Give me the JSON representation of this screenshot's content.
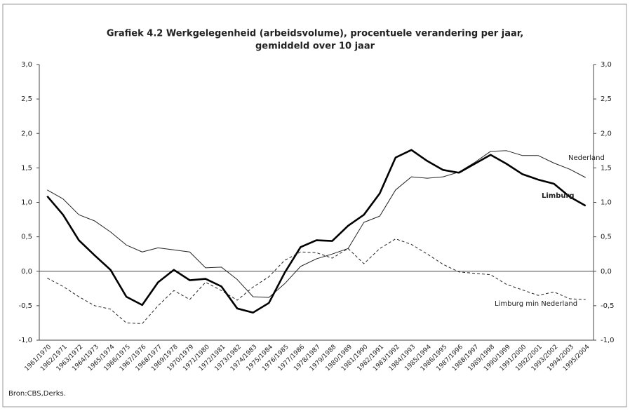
{
  "chart_data": {
    "type": "line",
    "title": [
      "Grafiek 4.2 Werkgelegenheid (arbeidsvolume), procentuele verandering per jaar,",
      "gemiddeld over 10 jaar"
    ],
    "source": "Bron:CBS,Derks.",
    "categories": [
      "1961/1970",
      "1962/1971",
      "1963/1972",
      "1964/1973",
      "1965/1974",
      "1966/1975",
      "1967/1976",
      "1968/1977",
      "1969/1978",
      "1970/1979",
      "1971/1980",
      "1972/1981",
      "1973/1982",
      "1974/1983",
      "1975/1984",
      "1976/1985",
      "1977/1986",
      "1978/1987",
      "1979/1988",
      "1980/1989",
      "1981/1990",
      "1982/1991",
      "1983/1992",
      "1984/1993",
      "1985/1994",
      "1986/1995",
      "1987/1996",
      "1988/1997",
      "1989/1998",
      "1990/1999",
      "1991/2000",
      "1992/2001",
      "1993/2002",
      "1994/2003",
      "1995/2004"
    ],
    "series": [
      {
        "name": "Nederland",
        "color": "#222222",
        "values": [
          1.18,
          1.05,
          0.82,
          0.73,
          0.57,
          0.38,
          0.28,
          0.34,
          0.31,
          0.28,
          0.05,
          0.06,
          -0.12,
          -0.37,
          -0.38,
          -0.18,
          0.07,
          0.18,
          0.25,
          0.33,
          0.71,
          0.8,
          1.18,
          1.37,
          1.35,
          1.37,
          1.44,
          1.58,
          1.74,
          1.75,
          1.68,
          1.68,
          1.57,
          1.48,
          1.36
        ]
      },
      {
        "name": "Limburg",
        "color": "#000000",
        "values": [
          1.09,
          0.82,
          0.45,
          0.23,
          0.02,
          -0.37,
          -0.49,
          -0.16,
          0.02,
          -0.13,
          -0.11,
          -0.22,
          -0.54,
          -0.6,
          -0.46,
          -0.02,
          0.35,
          0.45,
          0.44,
          0.66,
          0.82,
          1.13,
          1.65,
          1.76,
          1.6,
          1.47,
          1.43,
          1.56,
          1.69,
          1.56,
          1.41,
          1.33,
          1.27,
          1.08,
          0.95
        ]
      },
      {
        "name": "Limburg min Nederland",
        "color": "#222222",
        "values": [
          -0.1,
          -0.22,
          -0.37,
          -0.5,
          -0.55,
          -0.75,
          -0.76,
          -0.5,
          -0.28,
          -0.41,
          -0.16,
          -0.28,
          -0.42,
          -0.23,
          -0.08,
          0.16,
          0.28,
          0.27,
          0.19,
          0.33,
          0.11,
          0.33,
          0.47,
          0.39,
          0.25,
          0.1,
          -0.01,
          -0.03,
          -0.05,
          -0.19,
          -0.27,
          -0.35,
          -0.3,
          -0.4,
          -0.41
        ]
      }
    ],
    "ylim": [
      -1.0,
      3.0
    ],
    "yticks": [
      {
        "value": -1.0,
        "label": "-1,0"
      },
      {
        "value": -0.5,
        "label": "-0,5"
      },
      {
        "value": 0,
        "label": "0,0"
      },
      {
        "value": 0.5,
        "label": "0,5"
      },
      {
        "value": 1.0,
        "label": "1,0"
      },
      {
        "value": 1.5,
        "label": "1,5"
      },
      {
        "value": 2.0,
        "label": "2,0"
      },
      {
        "value": 2.5,
        "label": "2,5"
      },
      {
        "value": 3.0,
        "label": "3,0"
      }
    ],
    "y2lim": [
      -1.0,
      3.0
    ],
    "y2ticks": [
      {
        "value": -1.0,
        "label": "-1,0"
      },
      {
        "value": -0.5,
        "label": "-0,5"
      },
      {
        "value": 0,
        "label": "0,0"
      },
      {
        "value": 0.5,
        "label": "0,5"
      },
      {
        "value": 1.0,
        "label": "1,0"
      },
      {
        "value": 1.5,
        "label": "1,5"
      },
      {
        "value": 2.0,
        "label": "2,0"
      },
      {
        "value": 2.5,
        "label": "2,5"
      },
      {
        "value": 3.0,
        "label": "3,0"
      }
    ],
    "grid": false
  }
}
